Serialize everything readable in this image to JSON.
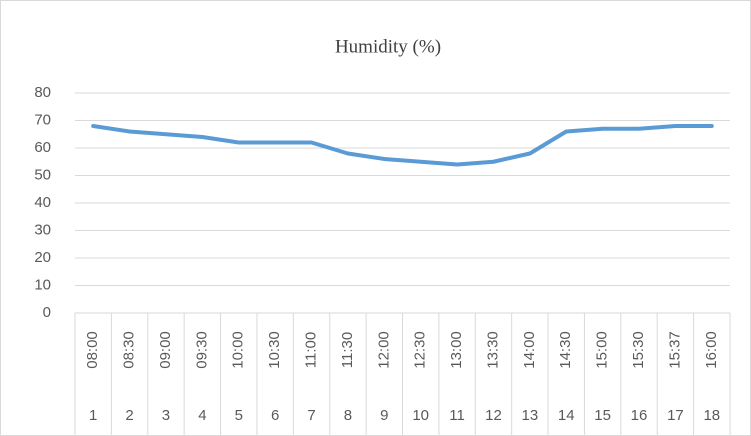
{
  "chart_data": {
    "type": "line",
    "title": "Humidity (%)",
    "categories": [
      "08:00",
      "08:30",
      "09:00",
      "09:30",
      "10:00",
      "10:30",
      "11:00",
      "11:30",
      "12:00",
      "12:30",
      "13:00",
      "13:30",
      "14:00",
      "14:30",
      "15:00",
      "15:30",
      "15:37",
      "16:00"
    ],
    "category_numbers": [
      1,
      2,
      3,
      4,
      5,
      6,
      7,
      8,
      9,
      10,
      11,
      12,
      13,
      14,
      15,
      16,
      17,
      18
    ],
    "values": [
      68,
      66,
      65,
      64,
      62,
      62,
      62,
      58,
      56,
      55,
      54,
      55,
      58,
      66,
      67,
      67,
      68,
      68
    ],
    "color": "#5b9bd5",
    "ylim": [
      0,
      80
    ],
    "yticks": [
      0,
      10,
      20,
      30,
      40,
      50,
      60,
      70,
      80
    ],
    "grid": true
  }
}
